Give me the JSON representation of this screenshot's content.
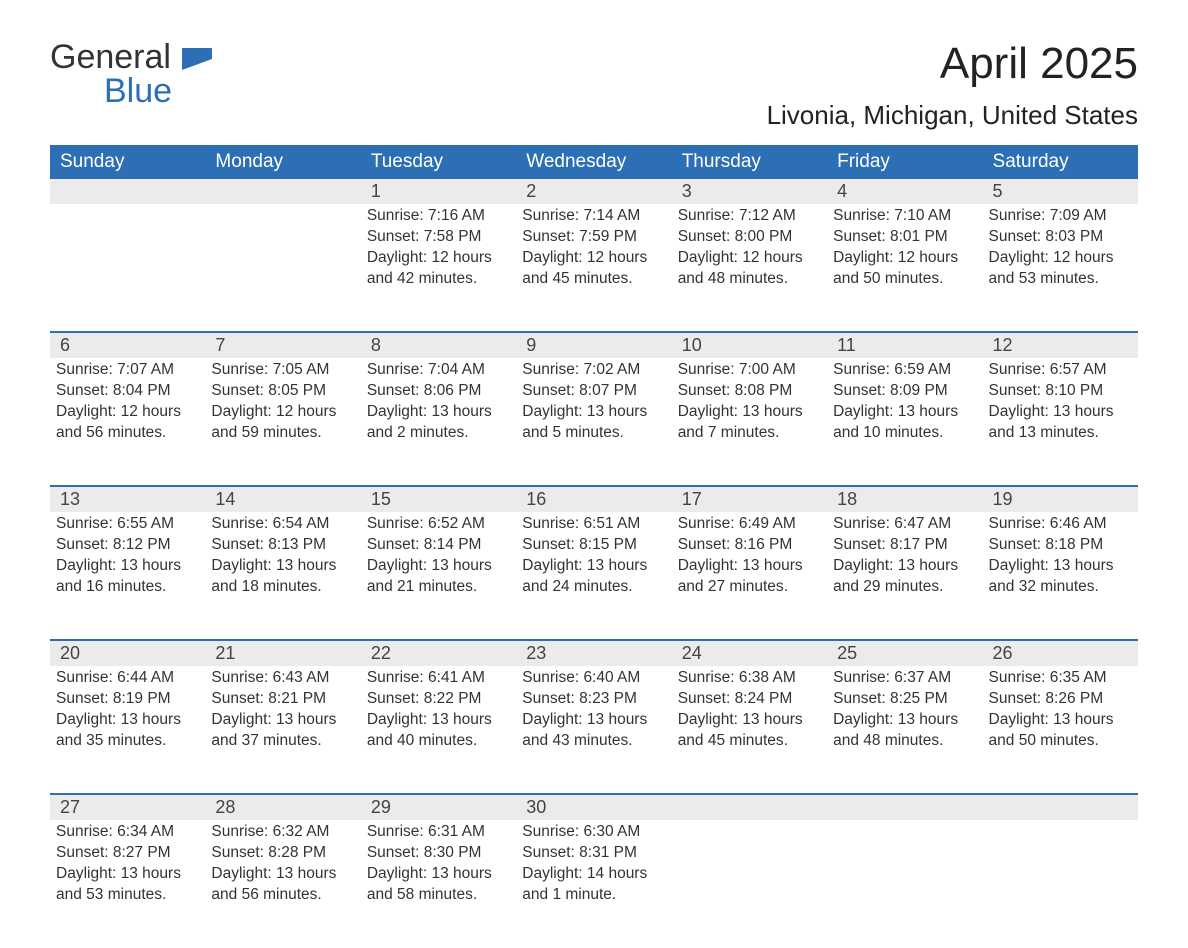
{
  "logo": {
    "word1": "General",
    "word2": "Blue",
    "flag_color": "#2d6fb4"
  },
  "title": "April 2025",
  "location": "Livonia, Michigan, United States",
  "colors": {
    "header_bg": "#2d6fb4",
    "header_fg": "#ffffff",
    "daynum_bg": "#ebebeb",
    "row_border": "#2d6fb4",
    "text": "#333333"
  },
  "day_headers": [
    "Sunday",
    "Monday",
    "Tuesday",
    "Wednesday",
    "Thursday",
    "Friday",
    "Saturday"
  ],
  "weeks": [
    [
      null,
      null,
      {
        "n": "1",
        "sunrise": "7:16 AM",
        "sunset": "7:58 PM",
        "day_h": "12",
        "day_m": "42 minutes"
      },
      {
        "n": "2",
        "sunrise": "7:14 AM",
        "sunset": "7:59 PM",
        "day_h": "12",
        "day_m": "45 minutes"
      },
      {
        "n": "3",
        "sunrise": "7:12 AM",
        "sunset": "8:00 PM",
        "day_h": "12",
        "day_m": "48 minutes"
      },
      {
        "n": "4",
        "sunrise": "7:10 AM",
        "sunset": "8:01 PM",
        "day_h": "12",
        "day_m": "50 minutes"
      },
      {
        "n": "5",
        "sunrise": "7:09 AM",
        "sunset": "8:03 PM",
        "day_h": "12",
        "day_m": "53 minutes"
      }
    ],
    [
      {
        "n": "6",
        "sunrise": "7:07 AM",
        "sunset": "8:04 PM",
        "day_h": "12",
        "day_m": "56 minutes"
      },
      {
        "n": "7",
        "sunrise": "7:05 AM",
        "sunset": "8:05 PM",
        "day_h": "12",
        "day_m": "59 minutes"
      },
      {
        "n": "8",
        "sunrise": "7:04 AM",
        "sunset": "8:06 PM",
        "day_h": "13",
        "day_m": "2 minutes"
      },
      {
        "n": "9",
        "sunrise": "7:02 AM",
        "sunset": "8:07 PM",
        "day_h": "13",
        "day_m": "5 minutes"
      },
      {
        "n": "10",
        "sunrise": "7:00 AM",
        "sunset": "8:08 PM",
        "day_h": "13",
        "day_m": "7 minutes"
      },
      {
        "n": "11",
        "sunrise": "6:59 AM",
        "sunset": "8:09 PM",
        "day_h": "13",
        "day_m": "10 minutes"
      },
      {
        "n": "12",
        "sunrise": "6:57 AM",
        "sunset": "8:10 PM",
        "day_h": "13",
        "day_m": "13 minutes"
      }
    ],
    [
      {
        "n": "13",
        "sunrise": "6:55 AM",
        "sunset": "8:12 PM",
        "day_h": "13",
        "day_m": "16 minutes"
      },
      {
        "n": "14",
        "sunrise": "6:54 AM",
        "sunset": "8:13 PM",
        "day_h": "13",
        "day_m": "18 minutes"
      },
      {
        "n": "15",
        "sunrise": "6:52 AM",
        "sunset": "8:14 PM",
        "day_h": "13",
        "day_m": "21 minutes"
      },
      {
        "n": "16",
        "sunrise": "6:51 AM",
        "sunset": "8:15 PM",
        "day_h": "13",
        "day_m": "24 minutes"
      },
      {
        "n": "17",
        "sunrise": "6:49 AM",
        "sunset": "8:16 PM",
        "day_h": "13",
        "day_m": "27 minutes"
      },
      {
        "n": "18",
        "sunrise": "6:47 AM",
        "sunset": "8:17 PM",
        "day_h": "13",
        "day_m": "29 minutes"
      },
      {
        "n": "19",
        "sunrise": "6:46 AM",
        "sunset": "8:18 PM",
        "day_h": "13",
        "day_m": "32 minutes"
      }
    ],
    [
      {
        "n": "20",
        "sunrise": "6:44 AM",
        "sunset": "8:19 PM",
        "day_h": "13",
        "day_m": "35 minutes"
      },
      {
        "n": "21",
        "sunrise": "6:43 AM",
        "sunset": "8:21 PM",
        "day_h": "13",
        "day_m": "37 minutes"
      },
      {
        "n": "22",
        "sunrise": "6:41 AM",
        "sunset": "8:22 PM",
        "day_h": "13",
        "day_m": "40 minutes"
      },
      {
        "n": "23",
        "sunrise": "6:40 AM",
        "sunset": "8:23 PM",
        "day_h": "13",
        "day_m": "43 minutes"
      },
      {
        "n": "24",
        "sunrise": "6:38 AM",
        "sunset": "8:24 PM",
        "day_h": "13",
        "day_m": "45 minutes"
      },
      {
        "n": "25",
        "sunrise": "6:37 AM",
        "sunset": "8:25 PM",
        "day_h": "13",
        "day_m": "48 minutes"
      },
      {
        "n": "26",
        "sunrise": "6:35 AM",
        "sunset": "8:26 PM",
        "day_h": "13",
        "day_m": "50 minutes"
      }
    ],
    [
      {
        "n": "27",
        "sunrise": "6:34 AM",
        "sunset": "8:27 PM",
        "day_h": "13",
        "day_m": "53 minutes"
      },
      {
        "n": "28",
        "sunrise": "6:32 AM",
        "sunset": "8:28 PM",
        "day_h": "13",
        "day_m": "56 minutes"
      },
      {
        "n": "29",
        "sunrise": "6:31 AM",
        "sunset": "8:30 PM",
        "day_h": "13",
        "day_m": "58 minutes"
      },
      {
        "n": "30",
        "sunrise": "6:30 AM",
        "sunset": "8:31 PM",
        "day_h": "14",
        "day_m": "1 minute"
      },
      null,
      null,
      null
    ]
  ],
  "labels": {
    "sunrise": "Sunrise: ",
    "sunset": "Sunset: ",
    "daylight": "Daylight: ",
    "hours": " hours",
    "and": "and "
  }
}
